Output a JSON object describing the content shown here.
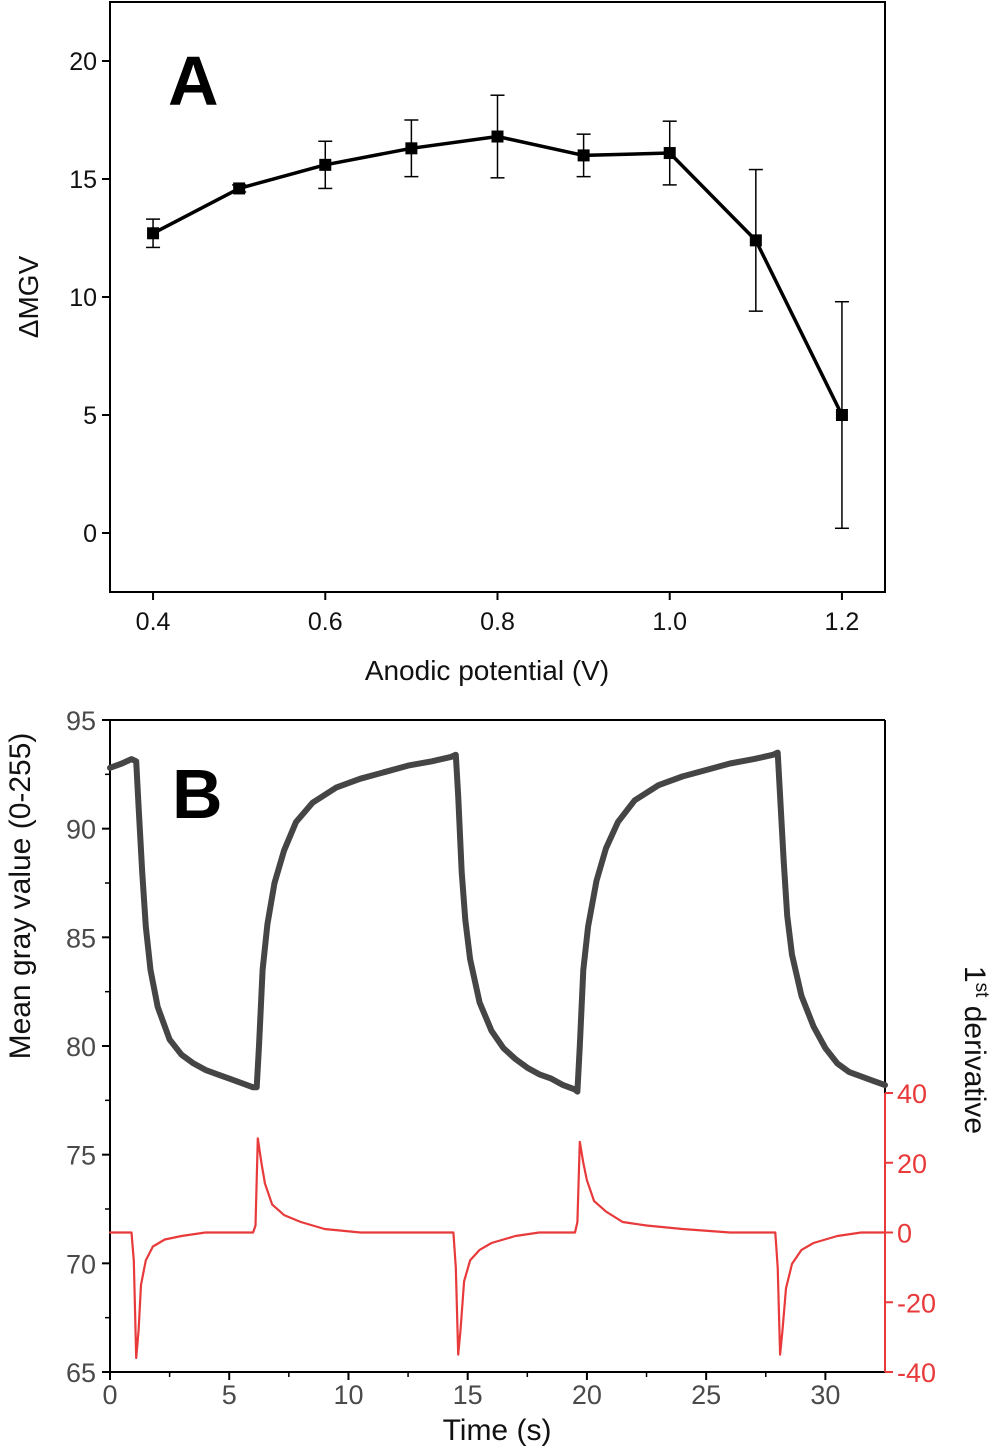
{
  "chart_data": [
    {
      "type": "line",
      "panel": "A",
      "xlabel": "Anodic potential (V)",
      "ylabel": "ΔMGV",
      "xlim": [
        0.35,
        1.25
      ],
      "ylim": [
        -2.5,
        22.5
      ],
      "xticks": [
        "0.4",
        "0.6",
        "0.8",
        "1.0",
        "1.2"
      ],
      "yticks": [
        "0",
        "5",
        "10",
        "15",
        "20"
      ],
      "x": [
        0.4,
        0.5,
        0.6,
        0.7,
        0.8,
        0.9,
        1.0,
        1.1,
        1.2
      ],
      "series": [
        {
          "values": [
            12.7,
            14.6,
            15.6,
            16.3,
            16.8,
            16.0,
            16.1,
            12.4,
            5.0
          ],
          "errors": [
            0.6,
            0.15,
            1.0,
            1.2,
            1.75,
            0.9,
            1.35,
            3.0,
            4.8
          ],
          "color": "#000000",
          "marker": "square"
        }
      ],
      "grid": false
    },
    {
      "type": "line",
      "panel": "B",
      "xlabel": "Time (s)",
      "ylabel": "Mean gray value (0-255)",
      "y2label": "1st derivative",
      "xlim": [
        0,
        32.5
      ],
      "ylim": [
        65,
        95
      ],
      "y2lim": [
        -40,
        40
      ],
      "xticks": [
        "0",
        "5",
        "10",
        "15",
        "20",
        "25",
        "30"
      ],
      "yticks": [
        "65",
        "70",
        "75",
        "80",
        "85",
        "90",
        "95"
      ],
      "y2ticks": [
        "-40",
        "-20",
        "0",
        "20",
        "40"
      ],
      "series": [
        {
          "axis": "left",
          "color": "#454545",
          "points": [
            [
              0,
              92.8
            ],
            [
              0.5,
              93.0
            ],
            [
              0.9,
              93.2
            ],
            [
              1.1,
              93.1
            ],
            [
              1.2,
              91.0
            ],
            [
              1.35,
              88.0
            ],
            [
              1.5,
              85.5
            ],
            [
              1.7,
              83.5
            ],
            [
              2.0,
              81.8
            ],
            [
              2.5,
              80.3
            ],
            [
              3.0,
              79.6
            ],
            [
              3.5,
              79.2
            ],
            [
              4.0,
              78.9
            ],
            [
              4.5,
              78.7
            ],
            [
              5.0,
              78.5
            ],
            [
              5.5,
              78.3
            ],
            [
              6.0,
              78.1
            ],
            [
              6.15,
              78.1
            ],
            [
              6.25,
              80.0
            ],
            [
              6.4,
              83.5
            ],
            [
              6.6,
              85.6
            ],
            [
              6.9,
              87.5
            ],
            [
              7.3,
              89.0
            ],
            [
              7.8,
              90.3
            ],
            [
              8.5,
              91.2
            ],
            [
              9.5,
              91.9
            ],
            [
              10.5,
              92.3
            ],
            [
              11.5,
              92.6
            ],
            [
              12.5,
              92.9
            ],
            [
              13.5,
              93.1
            ],
            [
              14.3,
              93.3
            ],
            [
              14.5,
              93.4
            ],
            [
              14.6,
              91.5
            ],
            [
              14.75,
              88.0
            ],
            [
              14.9,
              85.8
            ],
            [
              15.1,
              84.0
            ],
            [
              15.5,
              82.0
            ],
            [
              16.0,
              80.7
            ],
            [
              16.5,
              79.9
            ],
            [
              17.0,
              79.4
            ],
            [
              17.5,
              79.0
            ],
            [
              18.0,
              78.7
            ],
            [
              18.5,
              78.5
            ],
            [
              19.0,
              78.2
            ],
            [
              19.5,
              78.0
            ],
            [
              19.6,
              77.9
            ],
            [
              19.7,
              80.0
            ],
            [
              19.85,
              83.5
            ],
            [
              20.05,
              85.5
            ],
            [
              20.4,
              87.6
            ],
            [
              20.8,
              89.1
            ],
            [
              21.3,
              90.3
            ],
            [
              22.0,
              91.3
            ],
            [
              23.0,
              92.0
            ],
            [
              24.0,
              92.4
            ],
            [
              25.0,
              92.7
            ],
            [
              26.0,
              93.0
            ],
            [
              27.0,
              93.2
            ],
            [
              27.8,
              93.4
            ],
            [
              28.0,
              93.5
            ],
            [
              28.1,
              91.5
            ],
            [
              28.25,
              88.5
            ],
            [
              28.4,
              86.0
            ],
            [
              28.6,
              84.2
            ],
            [
              29.0,
              82.3
            ],
            [
              29.5,
              80.9
            ],
            [
              30.0,
              79.9
            ],
            [
              30.5,
              79.2
            ],
            [
              31.0,
              78.8
            ],
            [
              31.5,
              78.6
            ],
            [
              32.0,
              78.4
            ],
            [
              32.5,
              78.2
            ]
          ]
        },
        {
          "axis": "right",
          "color": "#e83a3a",
          "points": [
            [
              0,
              0
            ],
            [
              0.9,
              0
            ],
            [
              1.0,
              -8
            ],
            [
              1.1,
              -36
            ],
            [
              1.2,
              -28
            ],
            [
              1.3,
              -15
            ],
            [
              1.5,
              -8
            ],
            [
              1.8,
              -4
            ],
            [
              2.3,
              -2
            ],
            [
              3.0,
              -1
            ],
            [
              4.0,
              0
            ],
            [
              5.0,
              0
            ],
            [
              6.0,
              0
            ],
            [
              6.1,
              2
            ],
            [
              6.2,
              27
            ],
            [
              6.35,
              20
            ],
            [
              6.5,
              14
            ],
            [
              6.8,
              8
            ],
            [
              7.3,
              5
            ],
            [
              8.0,
              3
            ],
            [
              9.0,
              1
            ],
            [
              10.5,
              0
            ],
            [
              12.0,
              0
            ],
            [
              14.0,
              0
            ],
            [
              14.4,
              0
            ],
            [
              14.5,
              -10
            ],
            [
              14.6,
              -35
            ],
            [
              14.7,
              -28
            ],
            [
              14.85,
              -14
            ],
            [
              15.1,
              -8
            ],
            [
              15.5,
              -5
            ],
            [
              16.0,
              -3
            ],
            [
              17.0,
              -1
            ],
            [
              18.0,
              0
            ],
            [
              19.5,
              0
            ],
            [
              19.6,
              3
            ],
            [
              19.7,
              26
            ],
            [
              19.85,
              20
            ],
            [
              20.0,
              15
            ],
            [
              20.3,
              9
            ],
            [
              20.8,
              6
            ],
            [
              21.5,
              3
            ],
            [
              22.5,
              2
            ],
            [
              24.0,
              1
            ],
            [
              26.0,
              0
            ],
            [
              27.9,
              0
            ],
            [
              28.0,
              -10
            ],
            [
              28.1,
              -35
            ],
            [
              28.2,
              -28
            ],
            [
              28.35,
              -16
            ],
            [
              28.6,
              -9
            ],
            [
              29.0,
              -5
            ],
            [
              29.5,
              -3
            ],
            [
              30.5,
              -1
            ],
            [
              31.5,
              0
            ],
            [
              32.5,
              0
            ]
          ]
        }
      ],
      "grid": false
    }
  ],
  "panel_labels": [
    "A",
    "B"
  ],
  "y2label_main": "1",
  "y2label_sup": "st",
  "y2label_rest": " derivative"
}
